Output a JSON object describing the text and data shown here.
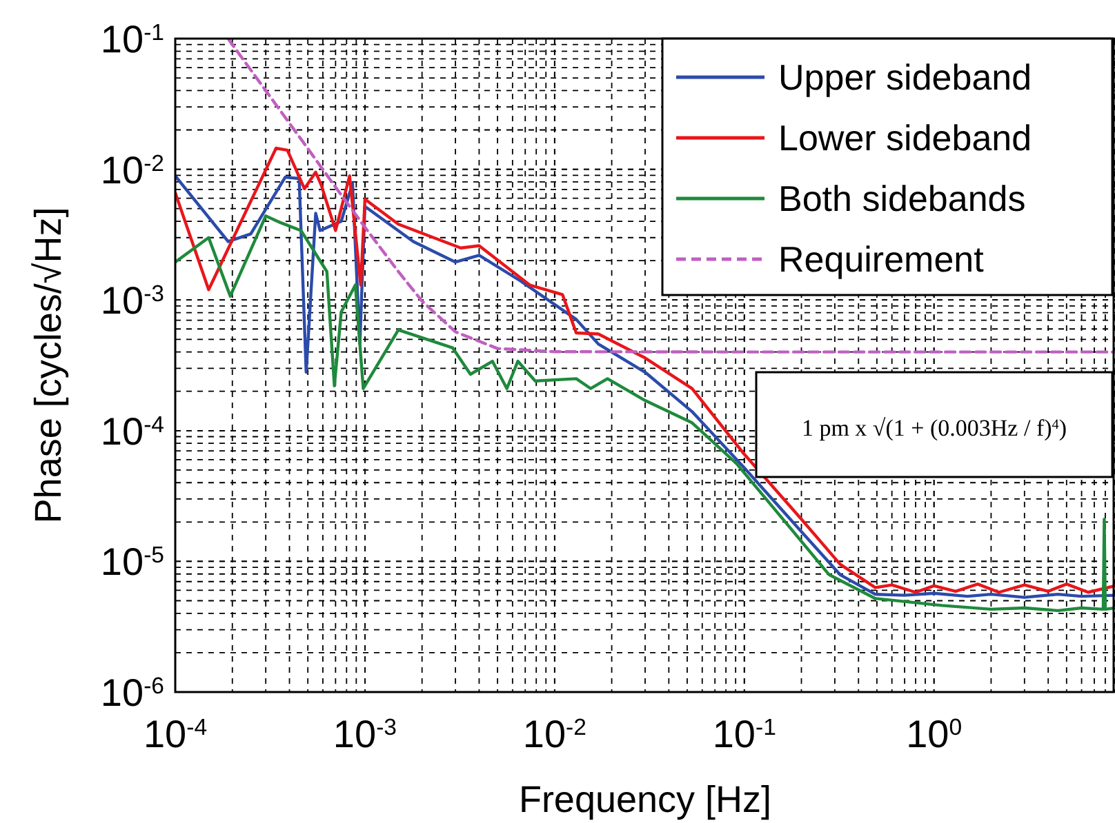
{
  "chart_data": {
    "type": "line",
    "xlabel": "Frequency [Hz]",
    "ylabel": "Phase [cycles/√Hz]",
    "log": "xy",
    "grid": true,
    "legend": "top right",
    "xlim": [
      0.0001,
      9
    ],
    "ylim": [
      1e-06,
      0.1
    ],
    "xticks": [
      {
        "value": 0.0001,
        "label": "10$^{-4}$"
      },
      {
        "value": 0.001,
        "label": "10$^{-3}$"
      },
      {
        "value": 0.01,
        "label": "10$^{-2}$"
      },
      {
        "value": 0.1,
        "label": "10$^{-1}$"
      },
      {
        "value": 1,
        "label": "10$^{0}$"
      }
    ],
    "yticks": [
      {
        "value": 1e-06,
        "label": "10$^{-6}$"
      },
      {
        "value": 1e-05,
        "label": "10$^{-5}$"
      },
      {
        "value": 0.0001,
        "label": "10$^{-4}$"
      },
      {
        "value": 0.001,
        "label": "10$^{-3}$"
      },
      {
        "value": 0.01,
        "label": "10$^{-2}$"
      },
      {
        "value": 0.1,
        "label": "10$^{-1}$"
      }
    ],
    "annotations": [
      "1 pm x √(1 + (0.003Hz / f)$^{4}$)"
    ],
    "series": [
      {
        "name": "Upper sideband",
        "color": "#2b4bab",
        "line_style": "solid",
        "x": [
          0.0001,
          0.00019,
          0.00025,
          0.00038,
          0.00045,
          0.00049,
          0.00055,
          0.00058,
          0.00075,
          0.00086,
          0.00094,
          0.001,
          0.0018,
          0.003,
          0.004,
          0.0066,
          0.013,
          0.017,
          0.03,
          0.053,
          0.1,
          0.18,
          0.32,
          0.49,
          0.7,
          1,
          1.5,
          2,
          3,
          4.5,
          6,
          9
        ],
        "values": [
          0.0089,
          0.0028,
          0.0032,
          0.0087,
          0.0085,
          0.00028,
          0.0046,
          0.0034,
          0.004,
          0.0078,
          0.00046,
          0.0052,
          0.0028,
          0.00195,
          0.0022,
          0.0014,
          0.00071,
          0.00046,
          0.00028,
          0.00014,
          5.2e-05,
          2e-05,
          7.9e-06,
          5.6e-06,
          5.5e-06,
          5.7e-06,
          5.4e-06,
          5.6e-06,
          5.3e-06,
          5.6e-06,
          5.4e-06,
          5.5e-06
        ]
      },
      {
        "name": "Lower sideband",
        "color": "#e8161b",
        "line_style": "solid",
        "x": [
          0.0001,
          0.00015,
          0.00034,
          0.00039,
          0.00048,
          0.00055,
          0.00059,
          0.0007,
          0.00083,
          0.00095,
          0.001,
          0.0015,
          0.0032,
          0.004,
          0.0074,
          0.011,
          0.013,
          0.017,
          0.03,
          0.053,
          0.1,
          0.2,
          0.32,
          0.49,
          0.6,
          0.8,
          1,
          1.3,
          1.7,
          2.2,
          3,
          4,
          5,
          6.5,
          9
        ],
        "values": [
          0.0066,
          0.0012,
          0.0145,
          0.014,
          0.0071,
          0.0095,
          0.0075,
          0.0034,
          0.0089,
          0.0013,
          0.0059,
          0.0038,
          0.0025,
          0.0026,
          0.0013,
          0.0011,
          0.00056,
          0.00055,
          0.00036,
          0.00021,
          6.6e-05,
          2.1e-05,
          9.5e-06,
          6.3e-06,
          6.6e-06,
          5.8e-06,
          6.5e-06,
          5.9e-06,
          6.7e-06,
          5.8e-06,
          6.6e-06,
          5.9e-06,
          6.7e-06,
          5.8e-06,
          6.5e-06
        ]
      },
      {
        "name": "Both sidebands",
        "color": "#1f8a3c",
        "line_style": "solid",
        "x": [
          0.0001,
          0.00015,
          0.000195,
          0.0003,
          0.00036,
          0.00046,
          0.00063,
          0.00069,
          0.00075,
          0.00089,
          0.00098,
          0.0015,
          0.0029,
          0.0036,
          0.0047,
          0.0056,
          0.0064,
          0.0079,
          0.013,
          0.0155,
          0.019,
          0.03,
          0.053,
          0.091,
          0.16,
          0.28,
          0.49,
          1.1,
          2,
          3,
          4.5,
          6,
          7.8,
          7.9,
          8,
          9
        ],
        "values": [
          0.00195,
          0.003,
          0.00107,
          0.0044,
          0.0039,
          0.0034,
          0.00165,
          0.00022,
          0.00081,
          0.0013,
          0.00021,
          0.00059,
          0.00043,
          0.00027,
          0.00034,
          0.00021,
          0.00034,
          0.00024,
          0.00025,
          0.00021,
          0.00025,
          0.00017,
          0.000115,
          5.6e-05,
          2.1e-05,
          7.9e-06,
          5.2e-06,
          4.6e-06,
          4.3e-06,
          4.4e-06,
          4.2e-06,
          4.4e-06,
          4.3e-06,
          2.1e-05,
          4.3e-06,
          4.4e-06
        ]
      },
      {
        "name": "Requirement",
        "color": "#c060c0",
        "line_style": "dashed",
        "x": [
          0.00019,
          0.0002,
          0.0003,
          0.0005,
          0.0007,
          0.001,
          0.0015,
          0.002,
          0.003,
          0.005,
          0.01,
          0.1,
          1,
          9
        ],
        "values": [
          0.1,
          0.09,
          0.04,
          0.0144,
          0.0073,
          0.0036,
          0.00165,
          0.00098,
          0.00057,
          0.000425,
          0.000402,
          0.0004,
          0.0004,
          0.0004
        ]
      }
    ]
  }
}
